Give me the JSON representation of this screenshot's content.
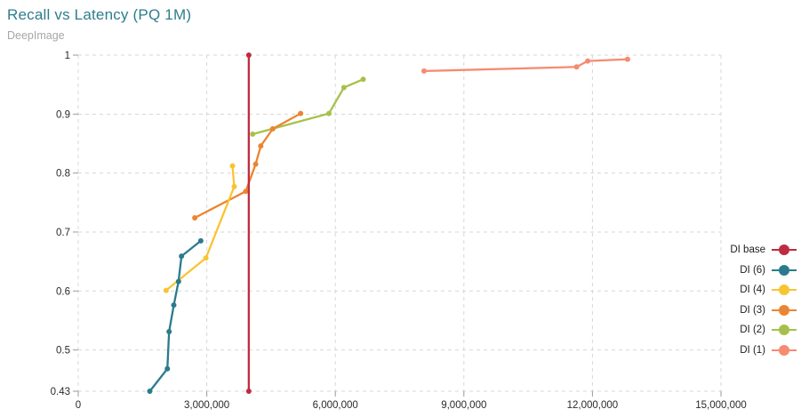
{
  "header": {
    "title": "Recall vs Latency (PQ 1M)",
    "subtitle": "DeepImage",
    "title_color": "#2e7d8d",
    "subtitle_color": "#a6a6a6"
  },
  "chart_data": {
    "type": "line",
    "title": "Recall vs Latency (PQ 1M)",
    "subtitle": "DeepImage",
    "xlabel": "",
    "ylabel": "",
    "x_axis": {
      "min": 0,
      "max": 15000000,
      "tick_values": [
        0,
        3000000,
        6000000,
        9000000,
        12000000,
        15000000
      ],
      "tick_labels": [
        "0",
        "3,000,000",
        "6,000,000",
        "9,000,000",
        "12,000,000",
        "15,000,000"
      ]
    },
    "y_axis": {
      "min": 0.43,
      "max": 1,
      "tick_values": [
        0.43,
        0.5,
        0.6,
        0.7,
        0.8,
        0.9,
        1
      ],
      "tick_labels": [
        "0.43",
        "0.5",
        "0.6",
        "0.7",
        "0.8",
        "0.9",
        "1"
      ]
    },
    "grid": {
      "show": true,
      "style": "dashed",
      "color": "#d7d7d7"
    },
    "legend": {
      "position": "right"
    },
    "series": [
      {
        "name": "DI base",
        "color": "#bf2b40",
        "shape": "vertical-line",
        "points": [
          [
            3980000,
            0.43
          ],
          [
            3980000,
            1.0
          ]
        ]
      },
      {
        "name": "DI (6)",
        "color": "#2a7b8d",
        "points": [
          [
            1670000,
            0.43
          ],
          [
            2080000,
            0.468
          ],
          [
            2120000,
            0.531
          ],
          [
            2230000,
            0.576
          ],
          [
            2340000,
            0.616
          ],
          [
            2410000,
            0.659
          ],
          [
            2860000,
            0.685
          ]
        ]
      },
      {
        "name": "DI (4)",
        "color": "#f9c433",
        "points": [
          [
            2050000,
            0.601
          ],
          [
            2980000,
            0.656
          ],
          [
            3640000,
            0.777
          ],
          [
            3600000,
            0.812
          ]
        ]
      },
      {
        "name": "DI (3)",
        "color": "#ec8431",
        "points": [
          [
            2720000,
            0.724
          ],
          [
            3910000,
            0.769
          ],
          [
            4140000,
            0.815
          ],
          [
            4260000,
            0.846
          ],
          [
            4540000,
            0.875
          ],
          [
            5190000,
            0.901
          ]
        ]
      },
      {
        "name": "DI (2)",
        "color": "#a6c14b",
        "points": [
          [
            4070000,
            0.866
          ],
          [
            5850000,
            0.901
          ],
          [
            6200000,
            0.945
          ],
          [
            6650000,
            0.959
          ]
        ]
      },
      {
        "name": "DI (1)",
        "color": "#f58b70",
        "points": [
          [
            8070000,
            0.973
          ],
          [
            11630000,
            0.98
          ],
          [
            11890000,
            0.99
          ],
          [
            12820000,
            0.993
          ]
        ]
      }
    ]
  }
}
